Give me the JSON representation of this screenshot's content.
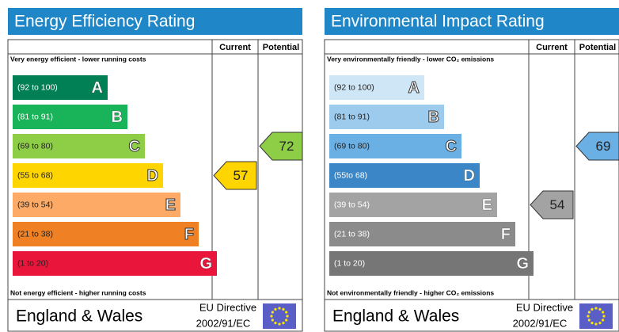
{
  "panels": [
    {
      "title": "Energy Efficiency Rating",
      "current_header": "Current",
      "potential_header": "Potential",
      "top_note": "Very energy efficient - lower running costs",
      "bottom_note": "Not energy efficient - higher running costs",
      "bands": [
        {
          "range": "(92 to 100)",
          "letter": "A",
          "color": "#008054"
        },
        {
          "range": "(81 to 91)",
          "letter": "B",
          "color": "#19b459"
        },
        {
          "range": "(69 to 80)",
          "letter": "C",
          "color": "#8dce46"
        },
        {
          "range": "(55 to 68)",
          "letter": "D",
          "color": "#ffd500"
        },
        {
          "range": "(39 to 54)",
          "letter": "E",
          "color": "#fcaa65"
        },
        {
          "range": "(21 to 38)",
          "letter": "F",
          "color": "#ef8023"
        },
        {
          "range": "(1 to 20)",
          "letter": "G",
          "color": "#e9153b"
        }
      ],
      "current": 57,
      "potential": 72,
      "footer_region": "England & Wales",
      "footer_directive": "EU Directive",
      "footer_code": "2002/91/EC"
    },
    {
      "title": "Environmental Impact Rating",
      "current_header": "Current",
      "potential_header": "Potential",
      "top_note": "Very environmentally friendly - lower CO₂ emissions",
      "bottom_note": "Not environmentally friendly - higher CO₂ emissions",
      "bands": [
        {
          "range": "(92 to 100)",
          "letter": "A",
          "color": "#cfe6f7"
        },
        {
          "range": "(81 to 91)",
          "letter": "B",
          "color": "#9ccbee"
        },
        {
          "range": "(69 to 80)",
          "letter": "C",
          "color": "#6bb0e5"
        },
        {
          "range": "(55to 68)",
          "letter": "D",
          "color": "#3a86c6"
        },
        {
          "range": "(39 to 54)",
          "letter": "E",
          "color": "#a3a3a3"
        },
        {
          "range": "(21 to 38)",
          "letter": "F",
          "color": "#8b8b8b"
        },
        {
          "range": "(1 to 20)",
          "letter": "G",
          "color": "#767676"
        }
      ],
      "current": 54,
      "potential": 69,
      "footer_region": "England & Wales",
      "footer_directive": "EU Directive",
      "footer_code": "2002/91/EC"
    }
  ]
}
